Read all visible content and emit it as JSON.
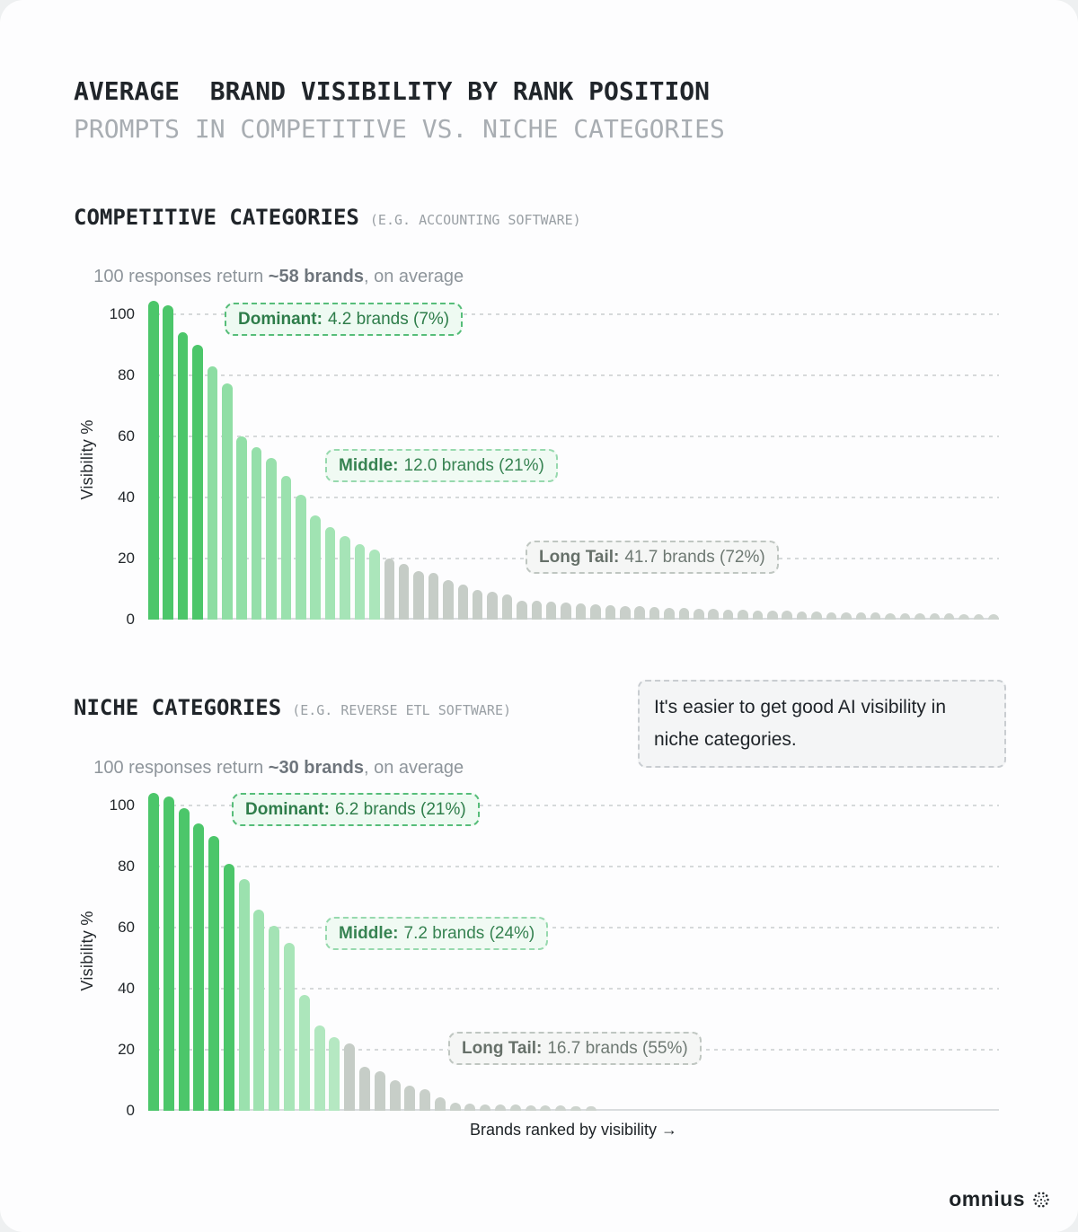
{
  "page": {
    "title": "AVERAGE  BRAND VISIBILITY BY RANK POSITION",
    "subtitle": "PROMPTS IN COMPETITIVE VS. NICHE CATEGORIES"
  },
  "colors": {
    "dominant_green": "#4cc66a",
    "middle_green": "#9ce2b0",
    "longtail_gray": "#c6ccc7",
    "annotation_green_border": "#56bd79",
    "annotation_gray_border": "#bfc6c1",
    "grid_gray": "#d6d9da"
  },
  "chart_data": [
    {
      "type": "bar",
      "section_title": "COMPETITIVE CATEGORIES",
      "section_subtitle": "(E.G. ACCOUNTING SOFTWARE)",
      "desc": {
        "prefix": "100 responses return ",
        "bold": "~58 brands",
        "suffix": ", on average"
      },
      "ylabel": "Visibility %",
      "yticks": [
        0,
        20,
        40,
        60,
        80,
        100
      ],
      "ylim": [
        0,
        105
      ],
      "grid": true,
      "values": [
        104.5,
        103,
        94,
        90,
        83,
        77.5,
        60,
        56.5,
        53,
        47,
        41,
        34,
        30.3,
        27.5,
        24.8,
        23,
        20,
        18.2,
        15.8,
        15.2,
        13,
        11.4,
        9.8,
        9.2,
        8.3,
        6.3,
        6.1,
        5.8,
        5.5,
        5.2,
        4.9,
        4.7,
        4.5,
        4.3,
        4.1,
        3.9,
        3.7,
        3.6,
        3.4,
        3.3,
        3.1,
        3.0,
        2.9,
        2.8,
        2.7,
        2.6,
        2.5,
        2.4,
        2.3,
        2.3,
        2.2,
        2.1,
        2.1,
        2.0,
        2.0,
        1.9,
        1.9,
        1.8
      ],
      "segments": [
        {
          "name": "dominant",
          "label": "Dominant:",
          "value_text": "4.2 brands (7%)",
          "count": 4,
          "bar_color_from": "#4cc66a",
          "bar_color_to": "#4cc66a"
        },
        {
          "name": "middle",
          "label": "Middle:",
          "value_text": "12.0 brands (21%)",
          "count": 12,
          "bar_color_from": "#8dddA3",
          "bar_color_to": "#abe6bb"
        },
        {
          "name": "longtail",
          "label": "Long Tail:",
          "value_text": "41.7 brands (72%)",
          "count": 42,
          "bar_color_from": "#c5ccc6",
          "bar_color_to": "#ced4cf"
        }
      ]
    },
    {
      "type": "bar",
      "section_title": "NICHE CATEGORIES",
      "section_subtitle": "(E.G. REVERSE ETL SOFTWARE)",
      "desc": {
        "prefix": "100 responses return ",
        "bold": "~30 brands",
        "suffix": ", on average"
      },
      "ylabel": "Visibility %",
      "xlabel": "Brands ranked by visibility →",
      "yticks": [
        0,
        20,
        40,
        60,
        80,
        100
      ],
      "ylim": [
        0,
        105
      ],
      "grid": true,
      "values": [
        104,
        103,
        99,
        94,
        90,
        81,
        76,
        66,
        60.5,
        55,
        38,
        28,
        24,
        22,
        14.3,
        13,
        10,
        8.2,
        7.1,
        4.5,
        2.7,
        2.4,
        2.2,
        2.1,
        2.0,
        1.9,
        1.8,
        1.7,
        1.6,
        1.5
      ],
      "segments": [
        {
          "name": "dominant",
          "label": "Dominant:",
          "value_text": "6.2 brands (21%)",
          "count": 6,
          "bar_color_from": "#4cc66a",
          "bar_color_to": "#4cc66a"
        },
        {
          "name": "middle",
          "label": "Middle:",
          "value_text": "7.2 brands (24%)",
          "count": 7,
          "bar_color_from": "#9be1ae",
          "bar_color_to": "#b5e8c2"
        },
        {
          "name": "longtail",
          "label": "Long Tail:",
          "value_text": "16.7 brands (55%)",
          "count": 17,
          "bar_color_from": "#c5ccc6",
          "bar_color_to": "#ced4cf"
        }
      ]
    }
  ],
  "callout": {
    "text": "It's easier to get good AI visibility in niche categories."
  },
  "footer": {
    "logo_text": "omnius"
  }
}
